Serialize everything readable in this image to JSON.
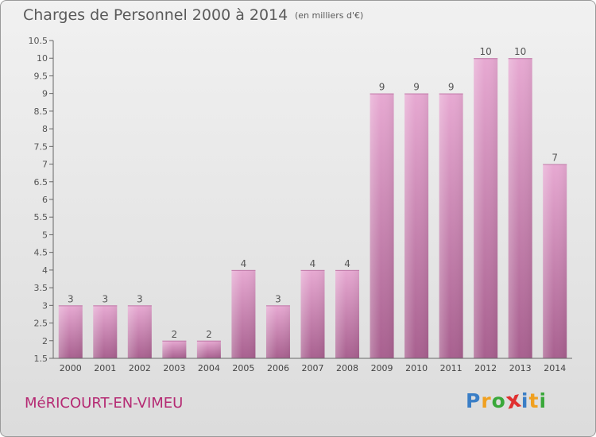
{
  "title": "Charges de Personnel 2000 à 2014",
  "subtitle": "(en milliers d'€)",
  "commune": "MéRICOURT-EN-VIMEU",
  "brand": {
    "letters": [
      "P",
      "r",
      "o",
      "x",
      "i",
      "t",
      "i"
    ],
    "colors": [
      "#3a7ec6",
      "#f0a020",
      "#3aa83a",
      "#e03030",
      "#3a7ec6",
      "#f0a020",
      "#3aa83a"
    ]
  },
  "colors": {
    "bar": "#d98fbf",
    "text": "#5a5a5a",
    "accent": "#b52a73"
  },
  "chart_data": {
    "type": "bar",
    "categories": [
      "2000",
      "2001",
      "2002",
      "2003",
      "2004",
      "2005",
      "2006",
      "2007",
      "2008",
      "2009",
      "2010",
      "2011",
      "2012",
      "2013",
      "2014"
    ],
    "values": [
      3,
      3,
      3,
      2,
      2,
      4,
      3,
      4,
      4,
      9,
      9,
      9,
      10,
      10,
      7
    ],
    "ylim": [
      1.5,
      10.5
    ],
    "yticks": [
      "1.5",
      "2",
      "2.5",
      "3",
      "3.5",
      "4",
      "4.5",
      "5",
      "5.5",
      "6",
      "6.5",
      "7",
      "7.5",
      "8",
      "8.5",
      "9",
      "9.5",
      "10",
      "10.5"
    ],
    "grid": false,
    "legend": "none"
  }
}
